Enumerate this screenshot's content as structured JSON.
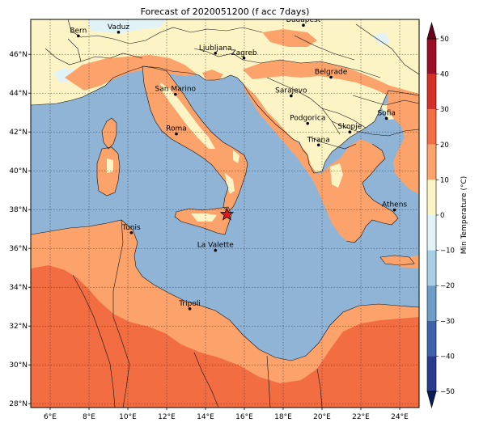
{
  "title": "Forecast of 2020051200 (f acc 7days)",
  "map": {
    "lon_range": [
      5,
      25
    ],
    "lat_range": [
      27.8,
      47.8
    ],
    "lon_ticks": [
      {
        "v": 6,
        "label": "6°E"
      },
      {
        "v": 8,
        "label": "8°E"
      },
      {
        "v": 10,
        "label": "10°E"
      },
      {
        "v": 12,
        "label": "12°E"
      },
      {
        "v": 14,
        "label": "14°E"
      },
      {
        "v": 16,
        "label": "16°E"
      },
      {
        "v": 18,
        "label": "18°E"
      },
      {
        "v": 20,
        "label": "20°E"
      },
      {
        "v": 22,
        "label": "22°E"
      },
      {
        "v": 24,
        "label": "24°E"
      }
    ],
    "lat_ticks": [
      {
        "v": 28,
        "label": "28°N"
      },
      {
        "v": 30,
        "label": "30°N"
      },
      {
        "v": 32,
        "label": "32°N"
      },
      {
        "v": 34,
        "label": "34°N"
      },
      {
        "v": 36,
        "label": "36°N"
      },
      {
        "v": 38,
        "label": "38°N"
      },
      {
        "v": 40,
        "label": "40°N"
      },
      {
        "v": 42,
        "label": "42°N"
      },
      {
        "v": 44,
        "label": "44°N"
      },
      {
        "v": 46,
        "label": "46°N"
      }
    ],
    "cities": [
      {
        "name": "Bern",
        "lon": 7.45,
        "lat": 46.95
      },
      {
        "name": "Vaduz",
        "lon": 9.52,
        "lat": 47.14
      },
      {
        "name": "Budapest",
        "lon": 19.04,
        "lat": 47.5
      },
      {
        "name": "Ljubljana",
        "lon": 14.51,
        "lat": 46.06
      },
      {
        "name": "Zagreb",
        "lon": 15.98,
        "lat": 45.81
      },
      {
        "name": "Belgrade",
        "lon": 20.46,
        "lat": 44.82
      },
      {
        "name": "San Marino",
        "lon": 12.45,
        "lat": 43.94
      },
      {
        "name": "Sarajevo",
        "lon": 18.41,
        "lat": 43.86
      },
      {
        "name": "Sofia",
        "lon": 23.32,
        "lat": 42.7
      },
      {
        "name": "Podgorica",
        "lon": 19.26,
        "lat": 42.44
      },
      {
        "name": "Skopje",
        "lon": 21.43,
        "lat": 42.0
      },
      {
        "name": "Roma",
        "lon": 12.5,
        "lat": 41.9
      },
      {
        "name": "Tirana",
        "lon": 19.82,
        "lat": 41.33
      },
      {
        "name": "Athens",
        "lon": 23.73,
        "lat": 37.98
      },
      {
        "name": "Tunis",
        "lon": 10.18,
        "lat": 36.81
      },
      {
        "name": "La Valette",
        "lon": 14.51,
        "lat": 35.9
      },
      {
        "name": "Tripoli",
        "lon": 13.19,
        "lat": 32.89
      }
    ],
    "marker": {
      "type": "star",
      "lon": 15.1,
      "lat": 37.75,
      "color": "#e8151b"
    }
  },
  "colorbar": {
    "label": "Min Temperature (°C)",
    "ticks": [
      "50",
      "40",
      "30",
      "20",
      "10",
      "0",
      "−10",
      "−20",
      "−30",
      "−40",
      "−50"
    ],
    "colors": [
      "#67001f",
      "#b2182b",
      "#d6604d",
      "#f4a582",
      "#fddbc7",
      "#f7f7f7",
      "#d1e5f0",
      "#92c5de",
      "#4393c3",
      "#2166ac",
      "#053061"
    ],
    "levels": [
      {
        "from": 40,
        "to": 50,
        "color": "#9b0e26"
      },
      {
        "from": 30,
        "to": 40,
        "color": "#d62f26"
      },
      {
        "from": 20,
        "to": 30,
        "color": "#f36d43"
      },
      {
        "from": 10,
        "to": 20,
        "color": "#fca36b"
      },
      {
        "from": 0,
        "to": 10,
        "color": "#fdf4c5"
      },
      {
        "from": -10,
        "to": 0,
        "color": "#e2f3f8"
      },
      {
        "from": -20,
        "to": -10,
        "color": "#a8d0e4"
      },
      {
        "from": -30,
        "to": -20,
        "color": "#6d9cc9"
      },
      {
        "from": -40,
        "to": -30,
        "color": "#3f63ab"
      },
      {
        "from": -50,
        "to": -40,
        "color": "#293b8e"
      }
    ]
  }
}
